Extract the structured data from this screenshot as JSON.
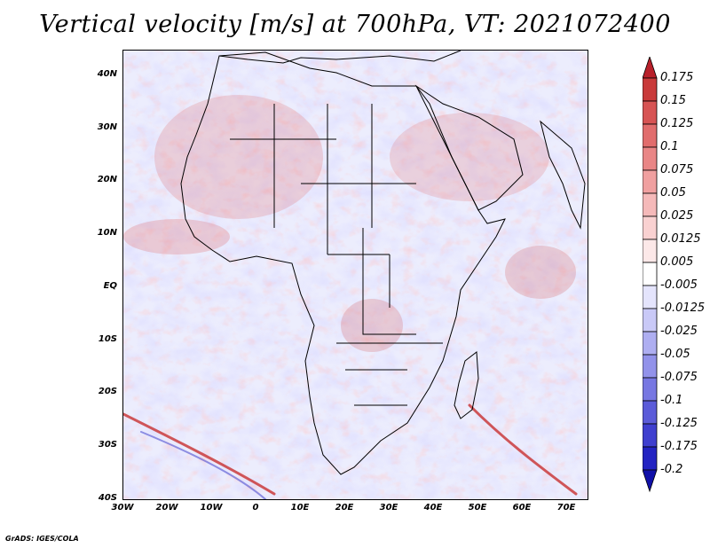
{
  "title": "Vertical velocity [m/s] at 700hPa, VT: 2021072400",
  "credit": "GrADS: IGES/COLA",
  "map": {
    "variable": "Vertical velocity",
    "level": "700hPa",
    "valid_time": "2021072400",
    "lon_range": [
      -30,
      75
    ],
    "lat_range": [
      -40,
      45
    ],
    "lat_labels": [
      "40N",
      "30N",
      "20N",
      "10N",
      "EQ",
      "10S",
      "20S",
      "30S",
      "40S"
    ],
    "lon_labels": [
      "30W",
      "20W",
      "10W",
      "0",
      "10E",
      "20E",
      "30E",
      "40E",
      "50E",
      "60E",
      "70E"
    ]
  },
  "colorbar": {
    "levels": [
      "0.175",
      "0.15",
      "0.125",
      "0.1",
      "0.075",
      "0.05",
      "0.025",
      "0.0125",
      "0.005",
      "-0.005",
      "-0.0125",
      "-0.025",
      "-0.05",
      "-0.075",
      "-0.1",
      "-0.125",
      "-0.175",
      "-0.2"
    ],
    "colors": [
      "#b8202a",
      "#c93a3a",
      "#d75454",
      "#e16d6d",
      "#e98686",
      "#f0a0a0",
      "#f5b9b9",
      "#f9d1d1",
      "#fce8e8",
      "#ffffff",
      "#e4e4fc",
      "#c9c9f7",
      "#aeaef1",
      "#9292ea",
      "#7777e2",
      "#5b5bd9",
      "#3f3fcf",
      "#2323c2",
      "#1010a8"
    ]
  }
}
